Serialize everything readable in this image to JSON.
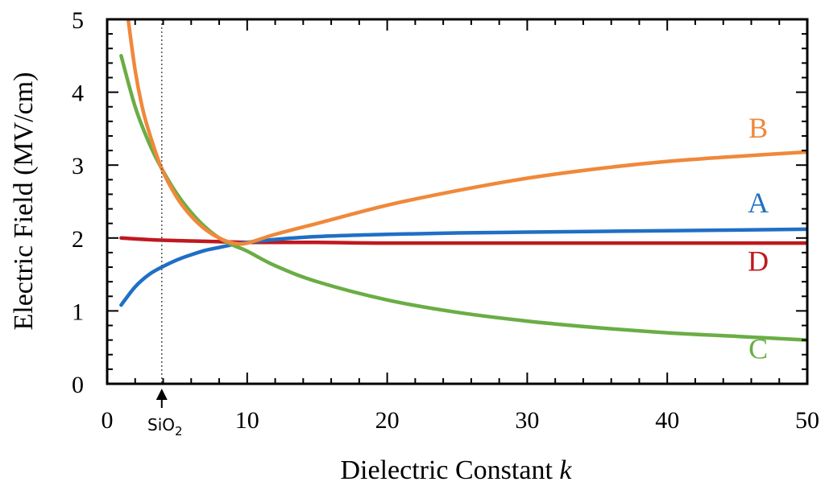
{
  "chart_data": {
    "type": "line",
    "xlabel": "Dielectric Constant",
    "xlabel_var": "k",
    "ylabel": "Electric Field (MV/cm)",
    "xlim": [
      0,
      50
    ],
    "ylim": [
      0,
      5
    ],
    "xticks": [
      "0",
      "10",
      "20",
      "30",
      "40",
      "50"
    ],
    "yticks": [
      "0",
      "1",
      "2",
      "3",
      "4",
      "5"
    ],
    "grid": false,
    "annotation": {
      "text": "SiO",
      "subscript": "2",
      "x": 3.9
    },
    "series": [
      {
        "name": "A",
        "color": "#1f6fc5",
        "x": [
          1,
          2,
          3,
          3.9,
          5,
          6,
          7,
          8,
          9,
          10,
          12,
          15,
          20,
          25,
          30,
          35,
          40,
          45,
          50
        ],
        "y": [
          1.08,
          1.33,
          1.5,
          1.6,
          1.7,
          1.77,
          1.83,
          1.87,
          1.91,
          1.94,
          1.98,
          2.02,
          2.05,
          2.07,
          2.08,
          2.09,
          2.1,
          2.11,
          2.12
        ]
      },
      {
        "name": "B",
        "color": "#f0883a",
        "x": [
          1.5,
          2,
          2.5,
          3,
          3.9,
          5,
          6,
          7,
          8,
          9,
          10,
          12,
          15,
          20,
          25,
          30,
          35,
          40,
          45,
          50
        ],
        "y": [
          5.0,
          4.3,
          3.8,
          3.45,
          2.95,
          2.55,
          2.3,
          2.12,
          2.0,
          1.93,
          1.93,
          2.05,
          2.2,
          2.45,
          2.65,
          2.82,
          2.95,
          3.05,
          3.12,
          3.18
        ]
      },
      {
        "name": "C",
        "color": "#6aad45",
        "x": [
          1,
          2,
          3,
          3.9,
          5,
          6,
          7,
          8,
          9,
          10,
          12,
          15,
          20,
          25,
          30,
          35,
          40,
          45,
          50
        ],
        "y": [
          4.5,
          3.8,
          3.3,
          2.95,
          2.6,
          2.35,
          2.15,
          2.0,
          1.9,
          1.82,
          1.62,
          1.4,
          1.15,
          0.98,
          0.86,
          0.77,
          0.7,
          0.65,
          0.6
        ]
      },
      {
        "name": "D",
        "color": "#c0181e",
        "x": [
          1,
          3.9,
          8,
          10,
          15,
          20,
          30,
          40,
          50
        ],
        "y": [
          2.0,
          1.97,
          1.95,
          1.94,
          1.94,
          1.93,
          1.93,
          1.93,
          1.93
        ]
      }
    ],
    "labels": [
      {
        "series": "B",
        "text": "B",
        "x": 46.5,
        "y": 3.38
      },
      {
        "series": "A",
        "text": "A",
        "x": 46.5,
        "y": 2.35
      },
      {
        "series": "D",
        "text": "D",
        "x": 46.5,
        "y": 1.55
      },
      {
        "series": "C",
        "text": "C",
        "x": 46.5,
        "y": 0.35
      }
    ]
  }
}
